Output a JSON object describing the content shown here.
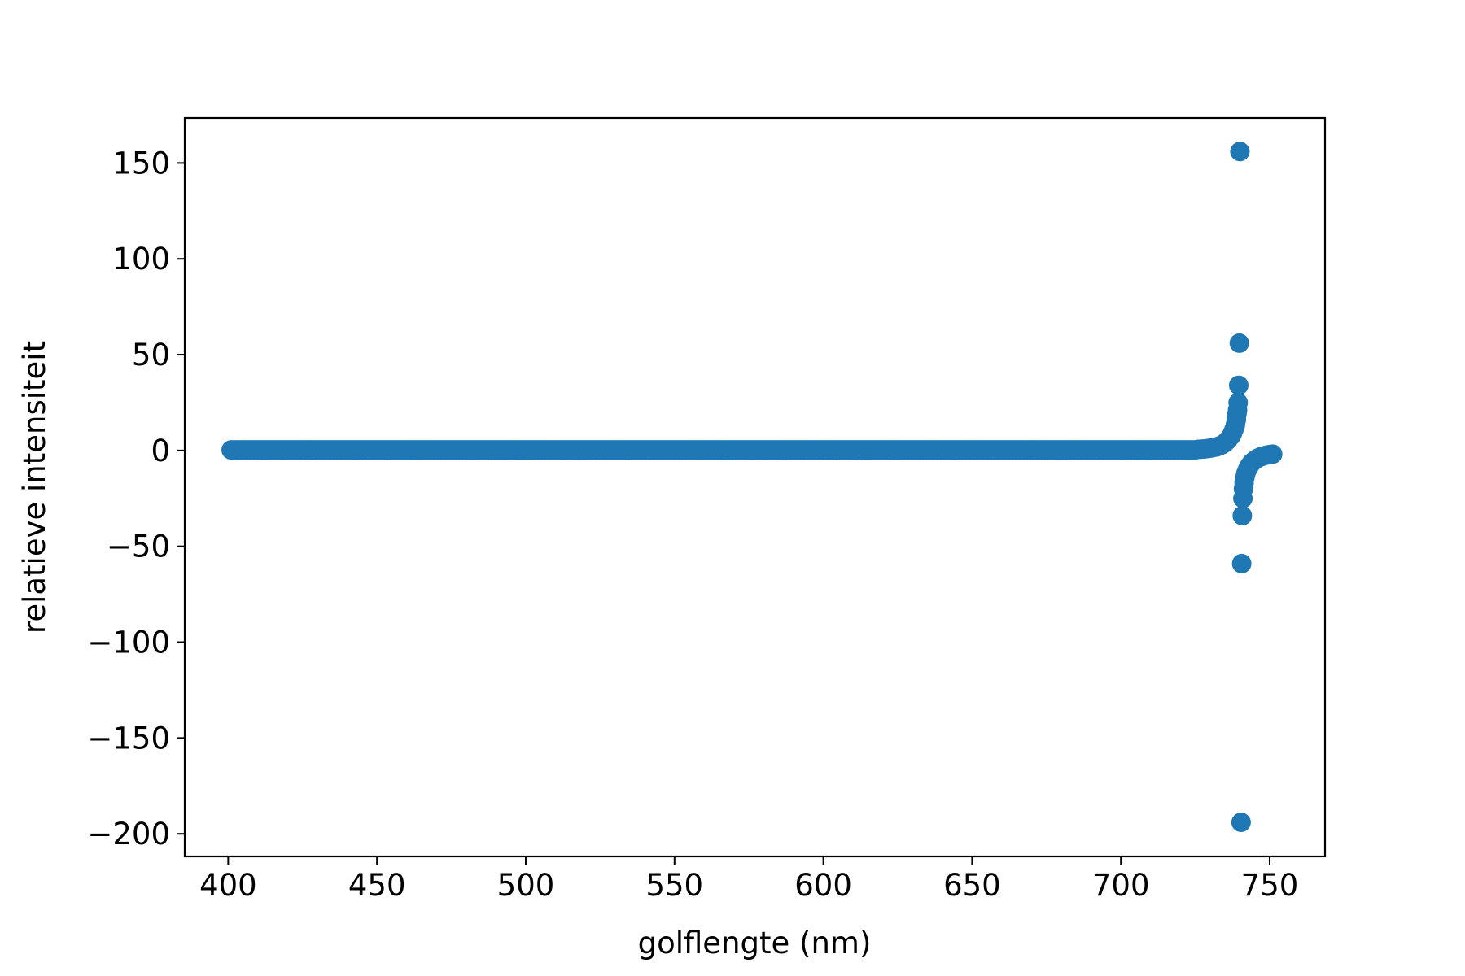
{
  "chart_data": {
    "type": "scatter",
    "title": "",
    "xlabel": "golflengte (nm)",
    "ylabel": "relatieve intensiteit",
    "xlim": [
      385.4,
      768.6
    ],
    "ylim": [
      -211.8,
      173.5
    ],
    "xticks": [
      400,
      450,
      500,
      550,
      600,
      650,
      700,
      750
    ],
    "yticks": [
      150,
      100,
      50,
      0,
      -50,
      -100,
      -150,
      -200
    ],
    "xtick_labels": [
      "400",
      "450",
      "500",
      "550",
      "600",
      "650",
      "700",
      "750"
    ],
    "ytick_labels": [
      "150",
      "100",
      "50",
      "0",
      "−50",
      "−100",
      "−150",
      "−200"
    ],
    "grid": false,
    "marker_color": "#1f77b4",
    "series": [
      {
        "baseline": {
          "x_start": 401,
          "x_end": 725,
          "x_step": 1,
          "y": 0.3
        },
        "points": [
          {
            "x": 726,
            "y": 0.6
          },
          {
            "x": 727,
            "y": 0.7
          },
          {
            "x": 728,
            "y": 0.8
          },
          {
            "x": 729,
            "y": 1.0
          },
          {
            "x": 730,
            "y": 1.2
          },
          {
            "x": 731,
            "y": 1.5
          },
          {
            "x": 732,
            "y": 1.8
          },
          {
            "x": 733,
            "y": 2.3
          },
          {
            "x": 734,
            "y": 3.0
          },
          {
            "x": 735,
            "y": 4.0
          },
          {
            "x": 736,
            "y": 5.5
          },
          {
            "x": 737,
            "y": 7.5
          },
          {
            "x": 737.5,
            "y": 9.0
          },
          {
            "x": 738,
            "y": 11.0
          },
          {
            "x": 738.5,
            "y": 13.5
          },
          {
            "x": 738.8,
            "y": 16.0
          },
          {
            "x": 739,
            "y": 19.0
          },
          {
            "x": 739.2,
            "y": 21.0
          },
          {
            "x": 739.4,
            "y": 25.0
          },
          {
            "x": 739.6,
            "y": 34.0
          },
          {
            "x": 739.8,
            "y": 56.0
          },
          {
            "x": 740.0,
            "y": 156.0
          },
          {
            "x": 740.4,
            "y": -194.0
          },
          {
            "x": 740.6,
            "y": -59.0
          },
          {
            "x": 740.8,
            "y": -34.0
          },
          {
            "x": 741.0,
            "y": -25.0
          },
          {
            "x": 741.2,
            "y": -20.0
          },
          {
            "x": 741.4,
            "y": -17.0
          },
          {
            "x": 741.7,
            "y": -14.0
          },
          {
            "x": 742.0,
            "y": -12.0
          },
          {
            "x": 742.5,
            "y": -10.0
          },
          {
            "x": 743,
            "y": -8.5
          },
          {
            "x": 743.5,
            "y": -7.3
          },
          {
            "x": 744,
            "y": -6.3
          },
          {
            "x": 745,
            "y": -5.0
          },
          {
            "x": 746,
            "y": -4.0
          },
          {
            "x": 747,
            "y": -3.3
          },
          {
            "x": 748,
            "y": -2.8
          },
          {
            "x": 749,
            "y": -2.4
          },
          {
            "x": 750,
            "y": -2.1
          },
          {
            "x": 751,
            "y": -1.9
          }
        ]
      }
    ]
  }
}
